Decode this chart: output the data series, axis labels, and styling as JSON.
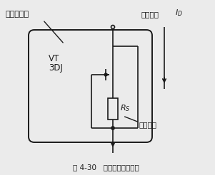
{
  "title": "图 4-30   场效应管恒流电路",
  "label_used_as": "用作恒流管",
  "label_VT": "VT",
  "label_3DJ": "3DJ",
  "label_Rs": "Rs",
  "label_source_resistor": "源极电阻",
  "label_constant_current": "恒定电流",
  "label_ID_italic": "I",
  "label_ID_sub": "D",
  "bg_color": "#ebebeb",
  "line_color": "#1a1a1a"
}
